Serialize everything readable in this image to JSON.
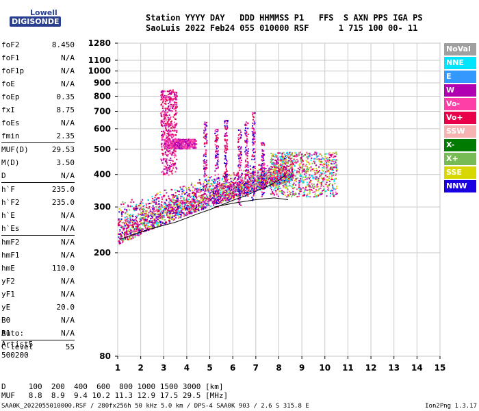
{
  "logo": {
    "line1": "Lowell",
    "line2": "DIGISONDE"
  },
  "header": {
    "line1": "Station YYYY DAY   DDD HHMMSS P1   FFS  S AXN PPS IGA PS",
    "line2": "SaoLuis 2022 Feb24 055 010000 RSF      1 715 100 00- 11"
  },
  "params": [
    {
      "k": "foF2",
      "v": "8.450"
    },
    {
      "k": "foF1",
      "v": "N/A"
    },
    {
      "k": "foF1p",
      "v": "N/A"
    },
    {
      "k": "foE",
      "v": "N/A"
    },
    {
      "k": "foEp",
      "v": "0.35"
    },
    {
      "k": "fxI",
      "v": "8.75"
    },
    {
      "k": "foEs",
      "v": "N/A"
    },
    {
      "k": "fmin",
      "v": "2.35"
    },
    {
      "k": "MUF(D)",
      "v": "29.53",
      "sep": true
    },
    {
      "k": "M(D)",
      "v": "3.50"
    },
    {
      "k": "D",
      "v": "N/A"
    },
    {
      "k": "h`F",
      "v": "235.0",
      "sep": true
    },
    {
      "k": "h`F2",
      "v": "235.0"
    },
    {
      "k": "h`E",
      "v": "N/A"
    },
    {
      "k": "h`Es",
      "v": "N/A"
    },
    {
      "k": "hmF2",
      "v": "N/A",
      "sep": true
    },
    {
      "k": "hmF1",
      "v": "N/A"
    },
    {
      "k": "hmE",
      "v": "110.0"
    },
    {
      "k": "yF2",
      "v": "N/A"
    },
    {
      "k": "yF1",
      "v": "N/A"
    },
    {
      "k": "yE",
      "v": "20.0"
    },
    {
      "k": "B0",
      "v": "N/A"
    },
    {
      "k": "B1",
      "v": "N/A"
    },
    {
      "k": "C-level",
      "v": "55",
      "sep": true
    }
  ],
  "auto": {
    "l1": "Auto:",
    "l2": "Artist5",
    "l3": "500200"
  },
  "legend": [
    {
      "label": "NoVal",
      "color": "#a0a0a0"
    },
    {
      "label": "NNE",
      "color": "#00e5ff"
    },
    {
      "label": "E",
      "color": "#3399ff"
    },
    {
      "label": "W",
      "color": "#b000b0"
    },
    {
      "label": "Vo-",
      "color": "#ff3fa8"
    },
    {
      "label": "Vo+",
      "color": "#e8004a"
    },
    {
      "label": "SSW",
      "color": "#f7b2b2"
    },
    {
      "label": "X-",
      "color": "#007a00"
    },
    {
      "label": "X+",
      "color": "#77bb55"
    },
    {
      "label": "SSE",
      "color": "#d8d800"
    },
    {
      "label": "NNW",
      "color": "#1a00e0"
    }
  ],
  "footer": {
    "d_line": "D     100  200  400  600  800 1000 1500 3000 [km]",
    "muf_line": "MUF   8.8  8.9  9.4 10.2 11.3 12.9 17.5 29.5 [MHz]",
    "info": "SAA0K_2022055010000.RSF / 280fx256h 50 kHz 5.0 km / DPS-4 SAA0K 903 / 2.6 S 315.8 E",
    "version": "Ion2Png 1.3.17"
  },
  "chart_data": {
    "type": "scatter",
    "xlabel": "",
    "ylabel": "",
    "xlim": [
      1,
      15
    ],
    "ylim": [
      80,
      1280
    ],
    "y_scale": "log",
    "x_ticks": [
      "1",
      "2",
      "3",
      "4",
      "5",
      "6",
      "7",
      "8",
      "9",
      "10",
      "11",
      "12",
      "13",
      "14",
      "15"
    ],
    "y_ticks": [
      "80",
      "200",
      "300",
      "400",
      "500",
      "600",
      "700",
      "800",
      "900",
      "1000",
      "1100",
      "1280"
    ],
    "grid": true,
    "legend_position": "right",
    "traces": [
      {
        "name": "trace-O",
        "points": [
          [
            1.1,
            225
          ],
          [
            1.5,
            232
          ],
          [
            2.0,
            240
          ],
          [
            2.5,
            248
          ],
          [
            3.0,
            255
          ],
          [
            3.5,
            262
          ],
          [
            4.0,
            272
          ],
          [
            4.5,
            283
          ],
          [
            5.0,
            293
          ],
          [
            5.5,
            305
          ],
          [
            6.0,
            318
          ],
          [
            6.5,
            330
          ],
          [
            7.0,
            345
          ],
          [
            7.5,
            360
          ],
          [
            8.0,
            380
          ],
          [
            8.3,
            400
          ]
        ]
      },
      {
        "name": "trace-X",
        "points": [
          [
            5.2,
            300
          ],
          [
            6.0,
            310
          ],
          [
            7.0,
            320
          ],
          [
            7.8,
            325
          ],
          [
            8.4,
            320
          ]
        ]
      }
    ]
  }
}
